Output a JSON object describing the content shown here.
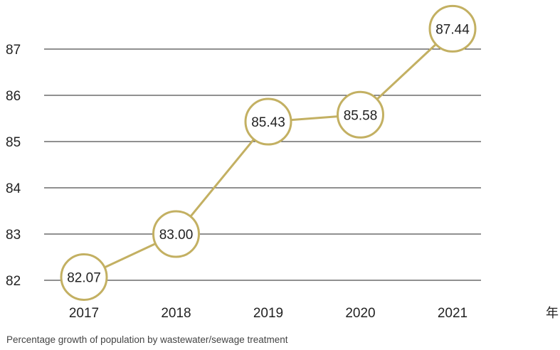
{
  "chart_data": {
    "type": "line",
    "title": "",
    "xlabel": "",
    "ylabel": "",
    "x_unit": "年",
    "categories": [
      "2017",
      "2018",
      "2019",
      "2020",
      "2021"
    ],
    "values": [
      82.07,
      83.0,
      85.43,
      85.58,
      87.44
    ],
    "data_labels": [
      "82.07",
      "83.00",
      "85.43",
      "85.58",
      "87.44"
    ],
    "yticks": [
      82,
      83,
      84,
      85,
      86,
      87
    ],
    "ylim": [
      82,
      87.44
    ],
    "grid": true,
    "colors": {
      "line": "#c3b062",
      "marker_stroke": "#c3b062",
      "marker_fill": "#ffffff",
      "grid": "#222222",
      "text": "#222222"
    }
  },
  "caption": "Percentage growth of population by wastewater/sewage treatment"
}
